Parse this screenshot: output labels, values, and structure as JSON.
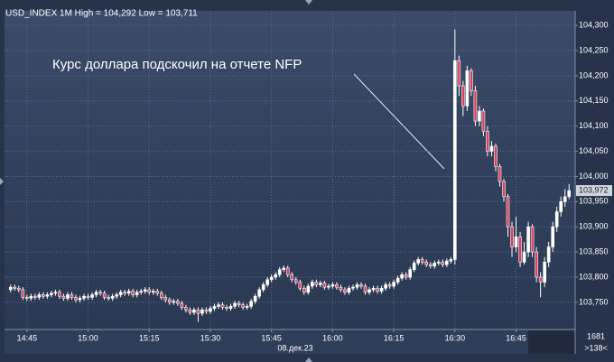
{
  "chart_data": {
    "type": "candlestick",
    "title": "USD_INDEX 1M High = 104,292 Low = 103,711",
    "annotation": "Курс доллара подскочил на отчете NFP",
    "date_label": "08.дек.23",
    "last_price_label": "103,972",
    "footer_labels": [
      "1681",
      ">138<"
    ],
    "up_color": "#ffffff",
    "down_color": "#d9405f",
    "grid": true,
    "xlim": [
      879.5,
      1019.5
    ],
    "xticks": [
      {
        "value": 885,
        "label": "14:45"
      },
      {
        "value": 900,
        "label": "15:00"
      },
      {
        "value": 915,
        "label": "15:15"
      },
      {
        "value": 930,
        "label": "15:30"
      },
      {
        "value": 945,
        "label": "15:45"
      },
      {
        "value": 960,
        "label": "16:00"
      },
      {
        "value": 975,
        "label": "16:15"
      },
      {
        "value": 990,
        "label": "16:30"
      },
      {
        "value": 1005,
        "label": "16:45"
      }
    ],
    "ylim": [
      103.696,
      104.329
    ],
    "yticks": [
      {
        "value": 103.75,
        "label": "103,750"
      },
      {
        "value": 103.8,
        "label": "103,800"
      },
      {
        "value": 103.85,
        "label": "103,850"
      },
      {
        "value": 103.9,
        "label": "103,900"
      },
      {
        "value": 103.95,
        "label": "103,950"
      },
      {
        "value": 104.0,
        "label": "104,000"
      },
      {
        "value": 104.05,
        "label": "104,050"
      },
      {
        "value": 104.1,
        "label": "104,100"
      },
      {
        "value": 104.15,
        "label": "104,150"
      },
      {
        "value": 104.2,
        "label": "104,200"
      },
      {
        "value": 104.25,
        "label": "104,250"
      },
      {
        "value": 104.3,
        "label": "104,300"
      }
    ],
    "x": [
      881,
      882,
      883,
      884,
      885,
      886,
      887,
      888,
      889,
      890,
      891,
      892,
      893,
      894,
      895,
      896,
      897,
      898,
      899,
      900,
      901,
      902,
      903,
      904,
      905,
      906,
      907,
      908,
      909,
      910,
      911,
      912,
      913,
      914,
      915,
      916,
      917,
      918,
      919,
      920,
      921,
      922,
      923,
      924,
      925,
      926,
      927,
      928,
      929,
      930,
      931,
      932,
      933,
      934,
      935,
      936,
      937,
      938,
      939,
      940,
      941,
      942,
      943,
      944,
      945,
      946,
      947,
      948,
      949,
      950,
      951,
      952,
      953,
      954,
      955,
      956,
      957,
      958,
      959,
      960,
      961,
      962,
      963,
      964,
      965,
      966,
      967,
      968,
      969,
      970,
      971,
      972,
      973,
      974,
      975,
      976,
      977,
      978,
      979,
      980,
      981,
      982,
      983,
      984,
      985,
      986,
      987,
      988,
      989,
      990,
      991,
      992,
      993,
      994,
      995,
      996,
      997,
      998,
      999,
      1000,
      1001,
      1002,
      1003,
      1004,
      1005,
      1006,
      1007,
      1008,
      1009,
      1010,
      1011,
      1012,
      1013,
      1014,
      1015,
      1016,
      1017,
      1018
    ],
    "ohlc": [
      [
        103.775,
        103.785,
        103.77,
        103.78
      ],
      [
        103.78,
        103.785,
        103.773,
        103.778
      ],
      [
        103.778,
        103.783,
        103.77,
        103.775
      ],
      [
        103.775,
        103.78,
        103.755,
        103.76
      ],
      [
        103.76,
        103.765,
        103.753,
        103.758
      ],
      [
        103.758,
        103.767,
        103.753,
        103.762
      ],
      [
        103.762,
        103.767,
        103.755,
        103.76
      ],
      [
        103.76,
        103.77,
        103.755,
        103.765
      ],
      [
        103.765,
        103.77,
        103.757,
        103.762
      ],
      [
        103.762,
        103.77,
        103.757,
        103.765
      ],
      [
        103.765,
        103.773,
        103.76,
        103.768
      ],
      [
        103.768,
        103.775,
        103.763,
        103.77
      ],
      [
        103.77,
        103.775,
        103.757,
        103.762
      ],
      [
        103.762,
        103.767,
        103.753,
        103.758
      ],
      [
        103.758,
        103.77,
        103.753,
        103.765
      ],
      [
        103.765,
        103.77,
        103.755,
        103.76
      ],
      [
        103.76,
        103.765,
        103.75,
        103.755
      ],
      [
        103.755,
        103.763,
        103.75,
        103.758
      ],
      [
        103.758,
        103.767,
        103.753,
        103.762
      ],
      [
        103.762,
        103.767,
        103.755,
        103.76
      ],
      [
        103.76,
        103.77,
        103.755,
        103.765
      ],
      [
        103.765,
        103.775,
        103.76,
        103.77
      ],
      [
        103.77,
        103.775,
        103.763,
        103.768
      ],
      [
        103.768,
        103.773,
        103.755,
        103.76
      ],
      [
        103.76,
        103.765,
        103.753,
        103.758
      ],
      [
        103.758,
        103.767,
        103.753,
        103.762
      ],
      [
        103.762,
        103.77,
        103.757,
        103.765
      ],
      [
        103.765,
        103.775,
        103.76,
        103.77
      ],
      [
        103.77,
        103.775,
        103.763,
        103.768
      ],
      [
        103.768,
        103.777,
        103.763,
        103.772
      ],
      [
        103.772,
        103.777,
        103.76,
        103.765
      ],
      [
        103.765,
        103.775,
        103.76,
        103.77
      ],
      [
        103.77,
        103.777,
        103.765,
        103.772
      ],
      [
        103.772,
        103.78,
        103.767,
        103.775
      ],
      [
        103.775,
        103.78,
        103.765,
        103.77
      ],
      [
        103.77,
        103.777,
        103.765,
        103.772
      ],
      [
        103.772,
        103.777,
        103.763,
        103.768
      ],
      [
        103.768,
        103.773,
        103.755,
        103.76
      ],
      [
        103.76,
        103.765,
        103.75,
        103.755
      ],
      [
        103.755,
        103.76,
        103.745,
        103.75
      ],
      [
        103.75,
        103.757,
        103.745,
        103.752
      ],
      [
        103.752,
        103.757,
        103.743,
        103.748
      ],
      [
        103.748,
        103.753,
        103.735,
        103.74
      ],
      [
        103.74,
        103.745,
        103.73,
        103.735
      ],
      [
        103.735,
        103.74,
        103.725,
        103.73
      ],
      [
        103.73,
        103.74,
        103.725,
        103.735
      ],
      [
        103.735,
        103.74,
        103.711,
        103.728
      ],
      [
        103.728,
        103.74,
        103.723,
        103.735
      ],
      [
        103.735,
        103.74,
        103.727,
        103.732
      ],
      [
        103.732,
        103.743,
        103.727,
        103.738
      ],
      [
        103.738,
        103.747,
        103.733,
        103.742
      ],
      [
        103.742,
        103.75,
        103.737,
        103.745
      ],
      [
        103.745,
        103.75,
        103.735,
        103.74
      ],
      [
        103.74,
        103.745,
        103.733,
        103.738
      ],
      [
        103.738,
        103.747,
        103.733,
        103.742
      ],
      [
        103.742,
        103.753,
        103.737,
        103.748
      ],
      [
        103.748,
        103.753,
        103.74,
        103.745
      ],
      [
        103.745,
        103.75,
        103.735,
        103.74
      ],
      [
        103.74,
        103.747,
        103.735,
        103.742
      ],
      [
        103.742,
        103.757,
        103.737,
        103.752
      ],
      [
        103.752,
        103.767,
        103.747,
        103.762
      ],
      [
        103.762,
        103.78,
        103.757,
        103.775
      ],
      [
        103.775,
        103.79,
        103.77,
        103.785
      ],
      [
        103.785,
        103.8,
        103.78,
        103.795
      ],
      [
        103.795,
        103.805,
        103.79,
        103.8
      ],
      [
        103.8,
        103.81,
        103.795,
        103.805
      ],
      [
        103.805,
        103.82,
        103.8,
        103.815
      ],
      [
        103.815,
        103.823,
        103.81,
        103.818
      ],
      [
        103.818,
        103.823,
        103.8,
        103.805
      ],
      [
        103.805,
        103.81,
        103.79,
        103.795
      ],
      [
        103.795,
        103.8,
        103.785,
        103.79
      ],
      [
        103.79,
        103.795,
        103.773,
        103.778
      ],
      [
        103.778,
        103.783,
        103.765,
        103.77
      ],
      [
        103.77,
        103.787,
        103.765,
        103.782
      ],
      [
        103.782,
        103.795,
        103.777,
        103.79
      ],
      [
        103.79,
        103.795,
        103.78,
        103.785
      ],
      [
        103.785,
        103.793,
        103.78,
        103.788
      ],
      [
        103.788,
        103.793,
        103.775,
        103.78
      ],
      [
        103.78,
        103.787,
        103.775,
        103.782
      ],
      [
        103.782,
        103.79,
        103.777,
        103.785
      ],
      [
        103.785,
        103.79,
        103.775,
        103.78
      ],
      [
        103.78,
        103.785,
        103.77,
        103.775
      ],
      [
        103.775,
        103.78,
        103.765,
        103.77
      ],
      [
        103.77,
        103.783,
        103.765,
        103.778
      ],
      [
        103.778,
        103.785,
        103.773,
        103.78
      ],
      [
        103.78,
        103.79,
        103.775,
        103.785
      ],
      [
        103.785,
        103.79,
        103.777,
        103.782
      ],
      [
        103.782,
        103.787,
        103.765,
        103.77
      ],
      [
        103.77,
        103.78,
        103.765,
        103.775
      ],
      [
        103.775,
        103.783,
        103.77,
        103.778
      ],
      [
        103.778,
        103.783,
        103.767,
        103.772
      ],
      [
        103.772,
        103.783,
        103.767,
        103.778
      ],
      [
        103.778,
        103.79,
        103.773,
        103.785
      ],
      [
        103.785,
        103.79,
        103.777,
        103.782
      ],
      [
        103.782,
        103.795,
        103.777,
        103.79
      ],
      [
        103.79,
        103.803,
        103.785,
        103.798
      ],
      [
        103.798,
        103.81,
        103.793,
        103.805
      ],
      [
        103.805,
        103.81,
        103.795,
        103.8
      ],
      [
        103.8,
        103.82,
        103.795,
        103.815
      ],
      [
        103.815,
        103.833,
        103.81,
        103.828
      ],
      [
        103.828,
        103.84,
        103.823,
        103.835
      ],
      [
        103.835,
        103.84,
        103.825,
        103.83
      ],
      [
        103.83,
        103.835,
        103.82,
        103.825
      ],
      [
        103.825,
        103.83,
        103.817,
        103.822
      ],
      [
        103.822,
        103.833,
        103.817,
        103.828
      ],
      [
        103.828,
        103.835,
        103.823,
        103.83
      ],
      [
        103.83,
        103.835,
        103.82,
        103.825
      ],
      [
        103.825,
        103.837,
        103.82,
        103.832
      ],
      [
        103.832,
        103.84,
        103.827,
        103.835
      ],
      [
        103.835,
        104.292,
        103.825,
        104.23
      ],
      [
        104.23,
        104.24,
        104.16,
        104.18
      ],
      [
        104.18,
        104.19,
        104.12,
        104.14
      ],
      [
        104.14,
        104.22,
        104.13,
        104.21
      ],
      [
        104.21,
        104.215,
        104.16,
        104.17
      ],
      [
        104.17,
        104.18,
        104.1,
        104.11
      ],
      [
        104.11,
        104.14,
        104.1,
        104.13
      ],
      [
        104.13,
        104.135,
        104.08,
        104.09
      ],
      [
        104.09,
        104.1,
        104.04,
        104.05
      ],
      [
        104.05,
        104.07,
        104.04,
        104.06
      ],
      [
        104.06,
        104.065,
        104.01,
        104.02
      ],
      [
        104.02,
        104.025,
        103.98,
        103.99
      ],
      [
        103.99,
        103.995,
        103.95,
        103.96
      ],
      [
        103.96,
        103.965,
        103.88,
        103.9
      ],
      [
        103.9,
        103.91,
        103.84,
        103.86
      ],
      [
        103.86,
        103.92,
        103.85,
        103.88
      ],
      [
        103.88,
        103.89,
        103.82,
        103.83
      ],
      [
        103.83,
        103.87,
        103.825,
        103.85
      ],
      [
        103.85,
        103.91,
        103.84,
        103.9
      ],
      [
        103.9,
        103.905,
        103.84,
        103.85
      ],
      [
        103.85,
        103.86,
        103.79,
        103.8
      ],
      [
        103.8,
        103.81,
        103.76,
        103.79
      ],
      [
        103.79,
        103.84,
        103.78,
        103.83
      ],
      [
        103.83,
        103.87,
        103.82,
        103.86
      ],
      [
        103.86,
        103.91,
        103.85,
        103.9
      ],
      [
        103.9,
        103.94,
        103.89,
        103.93
      ],
      [
        103.93,
        103.96,
        103.92,
        103.95
      ],
      [
        103.95,
        103.975,
        103.94,
        103.96
      ],
      [
        103.96,
        103.985,
        103.955,
        103.972
      ]
    ]
  }
}
